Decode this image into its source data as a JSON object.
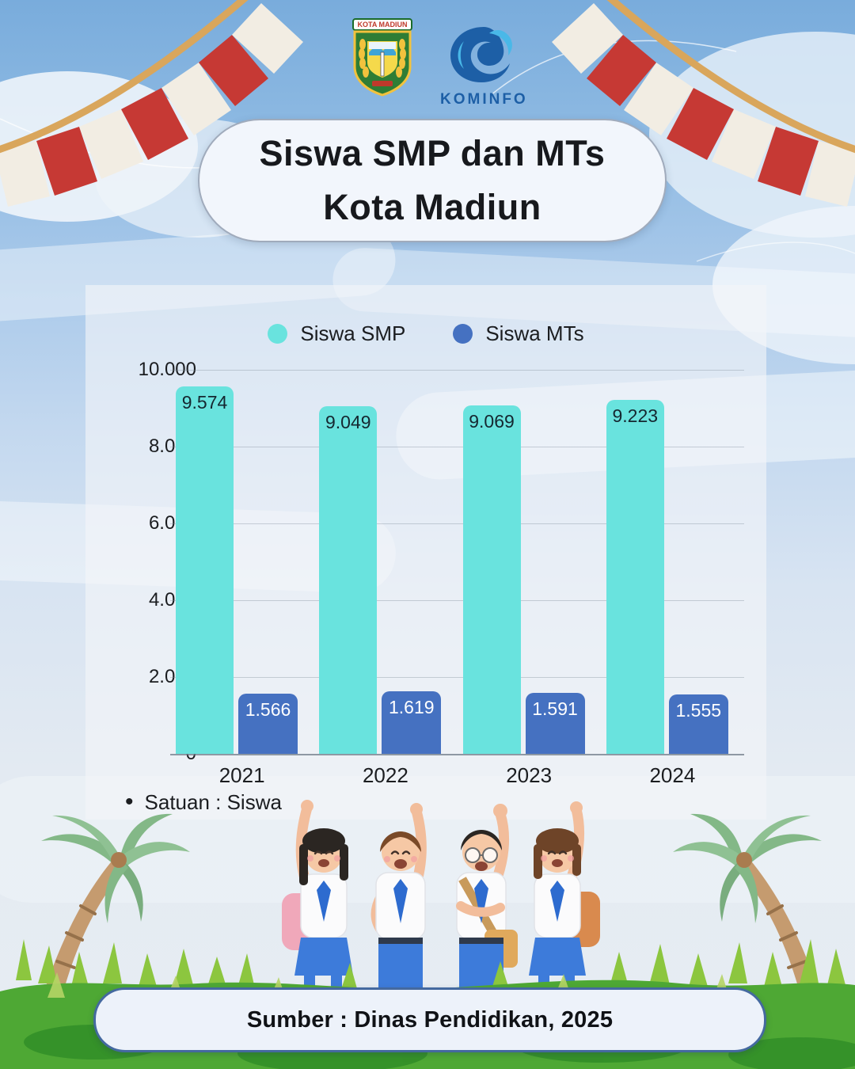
{
  "header": {
    "logo_left": {
      "name": "kota-madiun-coat-of-arms",
      "banner_text": "KOTA MADIUN"
    },
    "logo_right": {
      "name": "kominfo-logo",
      "label": "KOMINFO"
    }
  },
  "title": {
    "line1": "Siswa SMP dan MTs",
    "line2": "Kota Madiun"
  },
  "chart_data": {
    "type": "bar",
    "categories": [
      "2021",
      "2022",
      "2023",
      "2024"
    ],
    "series": [
      {
        "name": "Siswa SMP",
        "color": "#69e3de",
        "values": [
          9574,
          9049,
          9069,
          9223
        ],
        "labels": [
          "9.574",
          "9.049",
          "9.069",
          "9.223"
        ],
        "label_style": "dark"
      },
      {
        "name": "Siswa MTs",
        "color": "#4571c1",
        "values": [
          1566,
          1619,
          1591,
          1555
        ],
        "labels": [
          "1.566",
          "1.619",
          "1.591",
          "1.555"
        ],
        "label_style": "light"
      }
    ],
    "ylim": [
      0,
      10000
    ],
    "ytick_labels": [
      "0",
      "2.000",
      "4.000",
      "6.000",
      "8.000",
      "10.000"
    ],
    "grid": true,
    "legend_position": "top-center",
    "note_bullet": "•",
    "note": "Satuan : Siswa"
  },
  "footer": {
    "source": "Sumber : Dinas Pendidikan, 2025"
  },
  "colors": {
    "smp_bar": "#69e3de",
    "mts_bar": "#4571c1",
    "flag_red": "#c63934",
    "flag_cream": "#f2ede3",
    "rope_gold": "#d9a65c"
  }
}
